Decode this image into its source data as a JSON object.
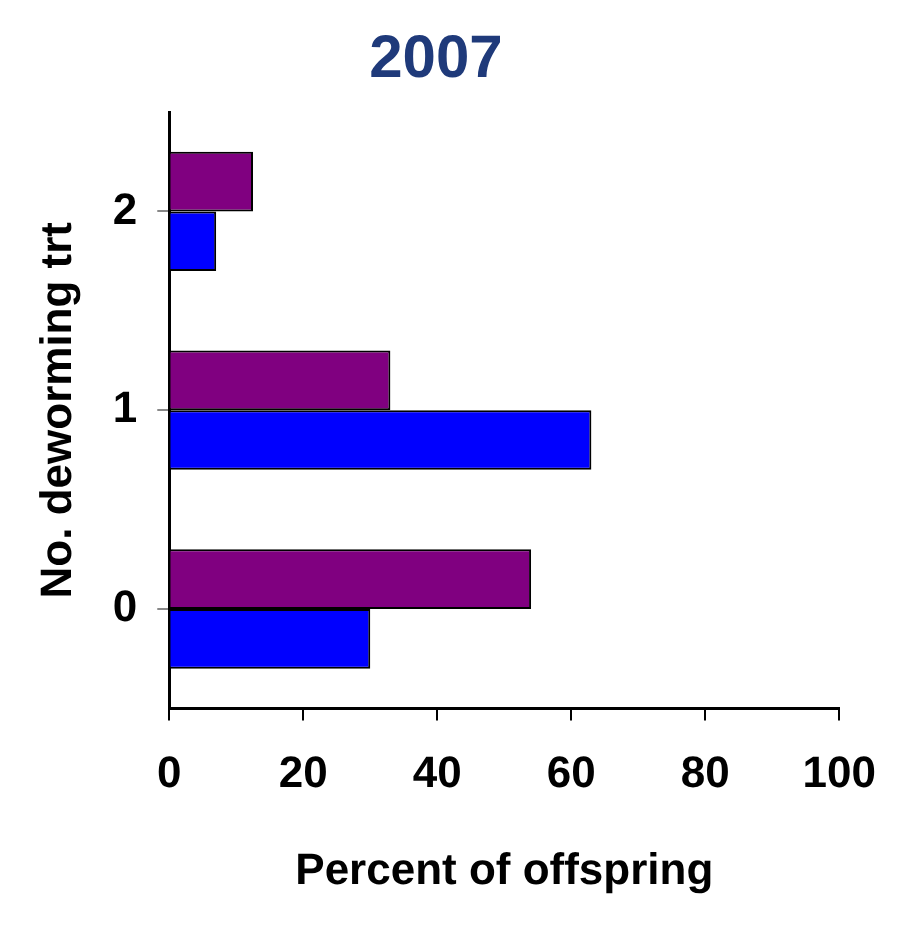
{
  "chart_data": {
    "type": "bar",
    "orientation": "horizontal",
    "title": "2007",
    "xlabel": "Percent of offspring",
    "ylabel": "No. deworming trt",
    "categories": [
      "2",
      "1",
      "0"
    ],
    "series": [
      {
        "color": "#800080",
        "values": [
          12.5,
          33,
          54
        ]
      },
      {
        "color": "#0000ff",
        "values": [
          7,
          63,
          30
        ]
      }
    ],
    "xlim": [
      0,
      100
    ],
    "xticks": [
      0,
      20,
      40,
      60,
      80,
      100
    ],
    "grid": false,
    "legend": false
  }
}
